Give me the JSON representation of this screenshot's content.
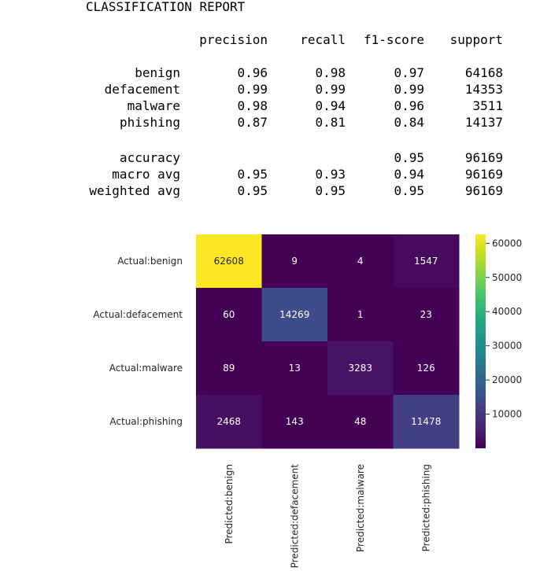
{
  "report": {
    "title": "CLASSIFICATION REPORT",
    "headers": [
      "precision",
      "recall",
      "f1-score",
      "support"
    ],
    "rows": [
      {
        "label": "benign",
        "precision": "0.96",
        "recall": "0.98",
        "f1": "0.97",
        "support": "64168"
      },
      {
        "label": "defacement",
        "precision": "0.99",
        "recall": "0.99",
        "f1": "0.99",
        "support": "14353"
      },
      {
        "label": "malware",
        "precision": "0.98",
        "recall": "0.94",
        "f1": "0.96",
        "support": "3511"
      },
      {
        "label": "phishing",
        "precision": "0.87",
        "recall": "0.81",
        "f1": "0.84",
        "support": "14137"
      }
    ],
    "summary": [
      {
        "label": "accuracy",
        "precision": "",
        "recall": "",
        "f1": "0.95",
        "support": "96169"
      },
      {
        "label": "macro avg",
        "precision": "0.95",
        "recall": "0.93",
        "f1": "0.94",
        "support": "96169"
      },
      {
        "label": "weighted avg",
        "precision": "0.95",
        "recall": "0.95",
        "f1": "0.95",
        "support": "96169"
      }
    ]
  },
  "chart_data": {
    "type": "heatmap",
    "colormap": "viridis",
    "rows": [
      "Actual:benign",
      "Actual:defacement",
      "Actual:malware",
      "Actual:phishing"
    ],
    "columns": [
      "Predicted:benign",
      "Predicted:defacement",
      "Predicted:malware",
      "Predicted:phishing"
    ],
    "values": [
      [
        62608,
        9,
        4,
        1547
      ],
      [
        60,
        14269,
        1,
        23
      ],
      [
        89,
        13,
        3283,
        126
      ],
      [
        2468,
        143,
        48,
        11478
      ]
    ],
    "colorbar": {
      "min": 1,
      "max": 62608,
      "ticks": [
        10000,
        20000,
        30000,
        40000,
        50000,
        60000
      ]
    }
  }
}
